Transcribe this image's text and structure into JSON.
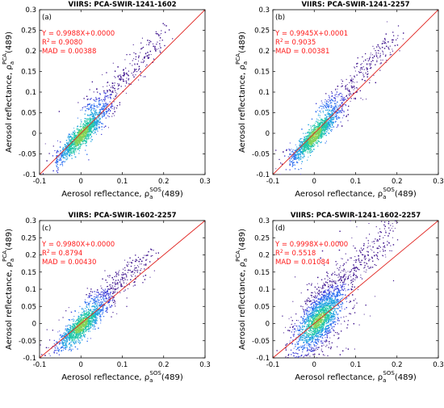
{
  "chart_data": [
    {
      "type": "scatter",
      "panel_label": "(a)",
      "title": "VIIRS: PCA-SWIR-1241-1602",
      "xlabel": "Aerosol reflectance, ρ_a^SOS(489)",
      "ylabel": "Aerosol reflectance, ρ_a^PCA(489)",
      "xlim": [
        -0.1,
        0.3
      ],
      "ylim": [
        -0.1,
        0.3
      ],
      "ticks": [
        "-0.1",
        "-0.05",
        "0",
        "0.05",
        "0.1",
        "0.15",
        "0.2",
        "0.25",
        "0.3"
      ],
      "xticks": [
        "-0.1",
        "0",
        "0.1",
        "0.2",
        "0.3"
      ],
      "stats": {
        "equation": "Y = 0.9988X+0.0000",
        "r2": "= 0.9080",
        "mad": "MAD = 0.00388"
      },
      "cloud": {
        "center": [
          0.0,
          -0.005
        ],
        "main_axis": [
          -0.06,
          0.13
        ],
        "upper_branch": [
          [
            0.02,
            0.05
          ],
          [
            0.2,
            0.24
          ]
        ],
        "spread": 0.012
      }
    },
    {
      "type": "scatter",
      "panel_label": "(b)",
      "title": "VIIRS: PCA-SWIR-1241-2257",
      "xlabel": "Aerosol reflectance, ρ_a^SOS(489)",
      "ylabel": "Aerosol reflectance, ρ_a^PCA(489)",
      "xlim": [
        -0.1,
        0.3
      ],
      "ylim": [
        -0.1,
        0.3
      ],
      "ticks": [
        "-0.1",
        "-0.05",
        "0",
        "0.05",
        "0.1",
        "0.15",
        "0.2",
        "0.25",
        "0.3"
      ],
      "xticks": [
        "-0.1",
        "0",
        "0.1",
        "0.2",
        "0.3"
      ],
      "stats": {
        "equation": "Y = 0.9945X+0.0001",
        "r2": "= 0.9035",
        "mad": "MAD = 0.00381"
      },
      "cloud": {
        "center": [
          0.0,
          -0.005
        ],
        "main_axis": [
          -0.06,
          0.13
        ],
        "upper_branch": [
          [
            0.02,
            0.05
          ],
          [
            0.2,
            0.24
          ]
        ],
        "spread": 0.012
      }
    },
    {
      "type": "scatter",
      "panel_label": "(c)",
      "title": "VIIRS: PCA-SWIR-1602-2257",
      "xlabel": "Aerosol reflectance, ρ_a^SOS(489)",
      "ylabel": "Aerosol reflectance, ρ_a^PCA(489)",
      "xlim": [
        -0.1,
        0.3
      ],
      "ylim": [
        -0.1,
        0.3
      ],
      "ticks": [
        "-0.1",
        "-0.05",
        "0",
        "0.05",
        "0.1",
        "0.15",
        "0.2",
        "0.25",
        "0.3"
      ],
      "xticks": [
        "-0.1",
        "0",
        "0.1",
        "0.2",
        "0.3"
      ],
      "stats": {
        "equation": "Y = 0.9980X+0.0000",
        "r2": "= 0.8794",
        "mad": "MAD = 0.00430"
      },
      "cloud": {
        "center": [
          0.0,
          -0.005
        ],
        "main_axis": [
          -0.08,
          0.17
        ],
        "upper_branch": [
          [
            0.03,
            0.06
          ],
          [
            0.17,
            0.2
          ]
        ],
        "spread": 0.016
      }
    },
    {
      "type": "scatter",
      "panel_label": "(d)",
      "title": "VIIRS: PCA-SWIR-1241-1602-2257",
      "xlabel": "Aerosol reflectance, ρ_a^SOS(489)",
      "ylabel": "Aerosol reflectance, ρ_a^PCA(489)",
      "xlim": [
        -0.1,
        0.3
      ],
      "ylim": [
        -0.1,
        0.3
      ],
      "ticks": [
        "-0.1",
        "-0.05",
        "0",
        "0.05",
        "0.1",
        "0.15",
        "0.2",
        "0.25",
        "0.3"
      ],
      "xticks": [
        "-0.1",
        "0",
        "0.1",
        "0.2",
        "0.3"
      ],
      "stats": {
        "equation": "Y = 0.9998X+0.0000",
        "r2": "= 0.5518",
        "mad": "MAD = 0.01084"
      },
      "cloud": {
        "center": [
          0.01,
          0.0
        ],
        "main_axis": [
          -0.07,
          0.18
        ],
        "upper_branch": [
          [
            0.02,
            0.06
          ],
          [
            0.19,
            0.28
          ]
        ],
        "spread": 0.04
      }
    }
  ],
  "colors": {
    "one_to_one_line": "#e0201c",
    "stat_text": "#ff1a1a",
    "density_scale": [
      "#3b0f8c",
      "#3a3ad6",
      "#2a6df0",
      "#1fa3e0",
      "#21c7a8",
      "#7fd35a",
      "#e8d83a"
    ]
  },
  "one_to_one": true
}
